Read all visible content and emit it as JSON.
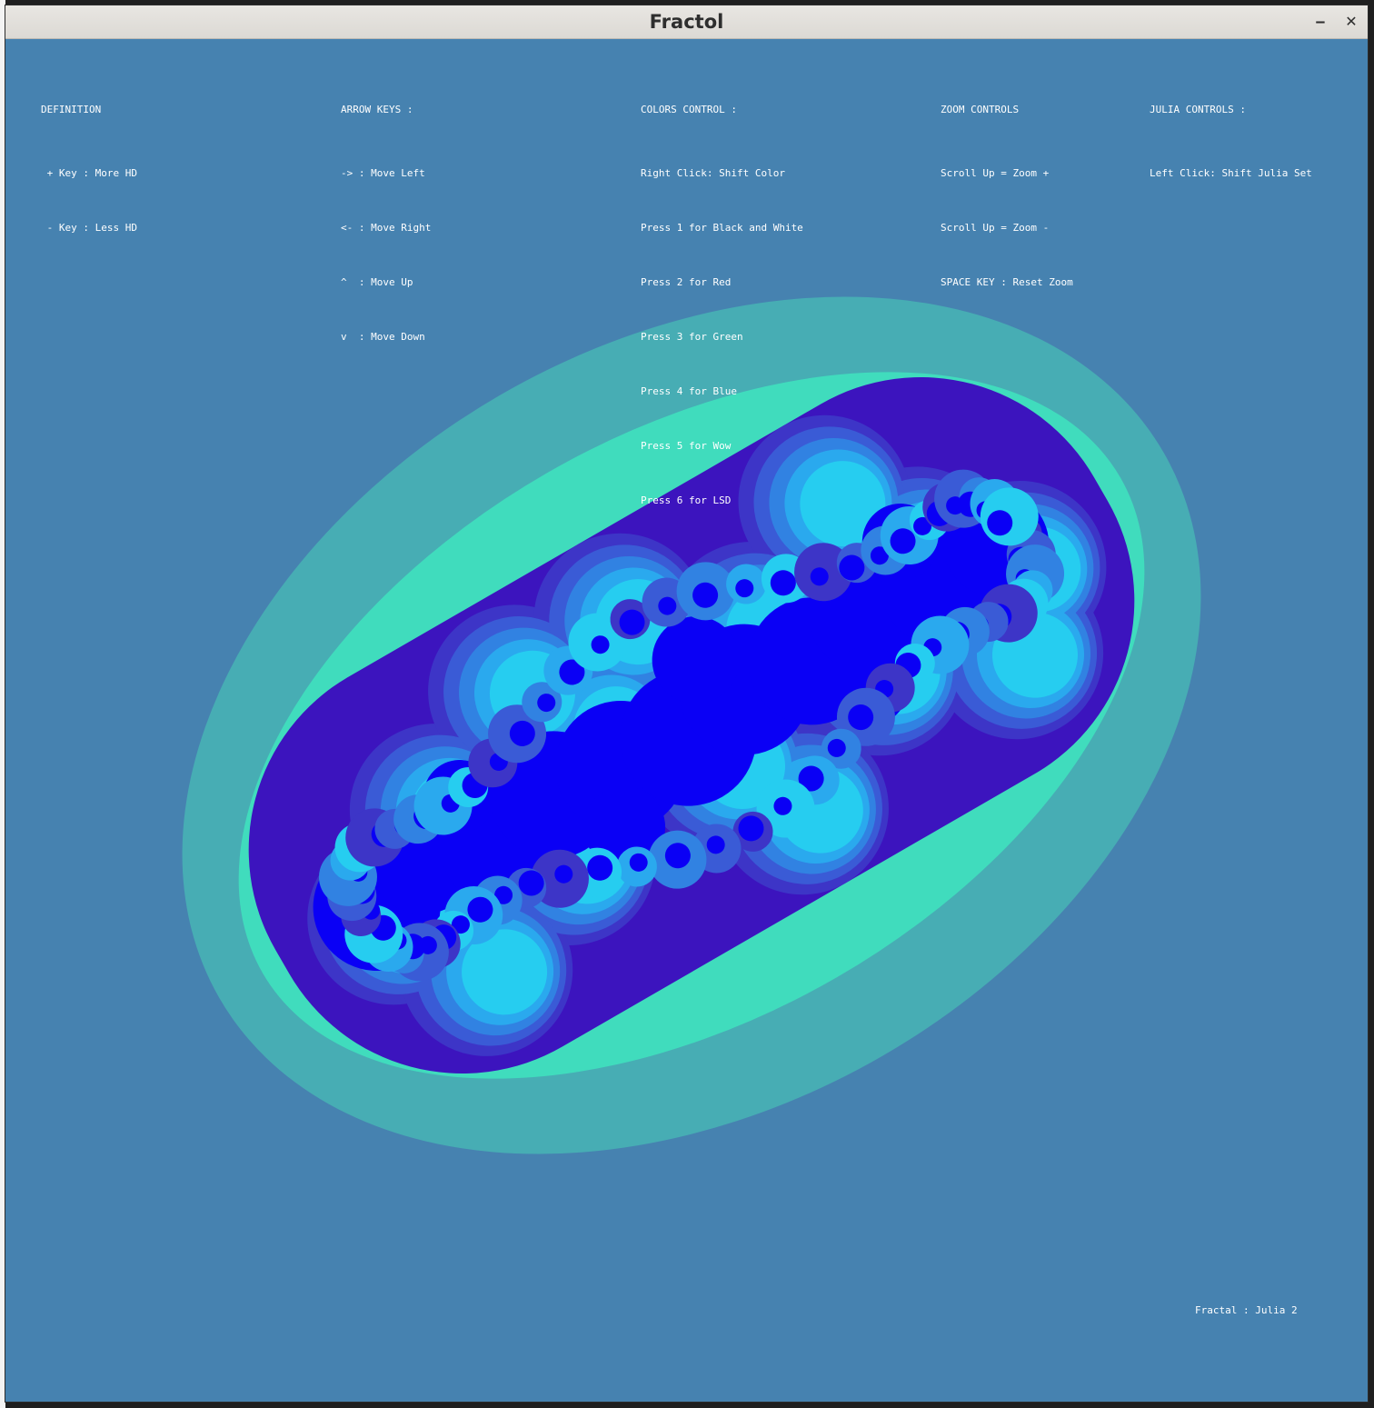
{
  "window": {
    "title": "Fractol",
    "minimize_glyph": "‒",
    "close_glyph": "✕"
  },
  "colors": {
    "background": "#4682b0",
    "ring_outer": "#47adb4",
    "ring_mid": "#40dcbd",
    "ring_indigo": "#3c14be",
    "band_1": "#3d35c7",
    "band_2": "#3a5bd6",
    "band_3": "#3182e2",
    "band_4": "#2aa9ee",
    "band_5": "#26cdf0",
    "core": "#0a00f5"
  },
  "help": {
    "definition": {
      "heading": "DEFINITION",
      "lines": [
        " + Key : More HD",
        " - Key : Less HD"
      ]
    },
    "arrows": {
      "heading": "ARROW KEYS :",
      "lines": [
        "-> : Move Left",
        "<- : Move Right",
        "^  : Move Up",
        "v  : Move Down"
      ]
    },
    "colors": {
      "heading": "COLORS CONTROL :",
      "lines": [
        "Right Click: Shift Color",
        "Press 1 for Black and White",
        "Press 2 for Red",
        "Press 3 for Green",
        "Press 4 for Blue",
        "Press 5 for Wow",
        "Press 6 for LSD"
      ]
    },
    "zoom": {
      "heading": "ZOOM CONTROLS",
      "lines": [
        "Scroll Up = Zoom +",
        "Scroll Up = Zoom -",
        "SPACE KEY : Reset Zoom"
      ]
    },
    "julia": {
      "heading": "JULIA CONTROLS :",
      "lines": [
        "Left Click: Shift Julia Set"
      ]
    }
  },
  "status": {
    "fractal_label": "Fractal : Julia 2"
  }
}
